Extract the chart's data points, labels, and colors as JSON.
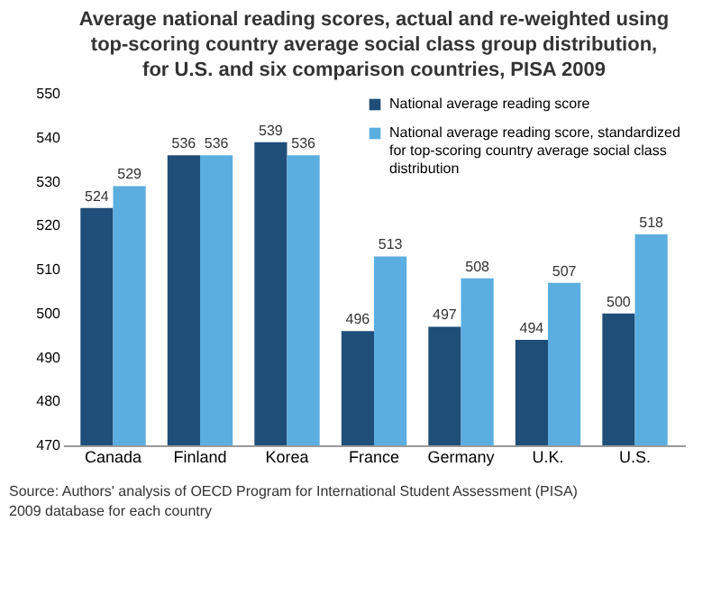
{
  "chart_data": {
    "type": "bar",
    "title": "Average national reading scores, actual and re-weighted using top-scoring country average social class group distribution, for U.S. and six comparison countries, PISA 2009",
    "categories": [
      "Canada",
      "Finland",
      "Korea",
      "France",
      "Germany",
      "U.K.",
      "U.S."
    ],
    "series": [
      {
        "name": "National average reading score",
        "color": "#1f4e79",
        "values": [
          524,
          536,
          539,
          496,
          497,
          494,
          500
        ]
      },
      {
        "name": "National average reading score, standardized for top-scoring country average social class distribution",
        "color": "#5aaee0",
        "values": [
          529,
          536,
          536,
          513,
          508,
          507,
          518
        ]
      }
    ],
    "ylim": [
      470,
      550
    ],
    "yticks": [
      470,
      480,
      490,
      500,
      510,
      520,
      530,
      540,
      550
    ],
    "grid": false,
    "legend": "top right",
    "data_labels": true,
    "annotations": [
      "Source: Authors' analysis of OECD Program for International Student Assessment (PISA) 2009 database for each country"
    ]
  }
}
